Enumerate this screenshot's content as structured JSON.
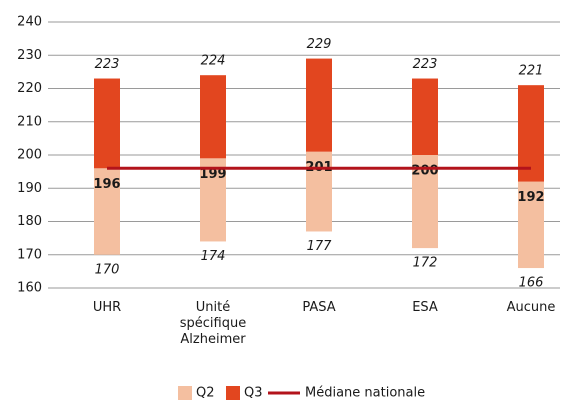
{
  "chart_data": {
    "type": "floating-bar",
    "categories": [
      "UHR",
      "Unité spécifique Alzheimer",
      "PASA",
      "ESA",
      "Aucune"
    ],
    "series": [
      {
        "name": "Q2",
        "color": "#f4bfa0",
        "values": [
          170,
          174,
          177,
          172,
          166
        ]
      },
      {
        "name": "Q3",
        "color": "#e2461f",
        "values": [
          223,
          224,
          229,
          223,
          221
        ]
      }
    ],
    "median_values": [
      196,
      199,
      201,
      200,
      192
    ],
    "reference": {
      "name": "Médiane nationale",
      "color": "#b3131b",
      "value": 196
    },
    "ylim": [
      160,
      240
    ],
    "yticks": [
      160,
      170,
      180,
      190,
      200,
      210,
      220,
      230,
      240
    ],
    "grid": true
  }
}
